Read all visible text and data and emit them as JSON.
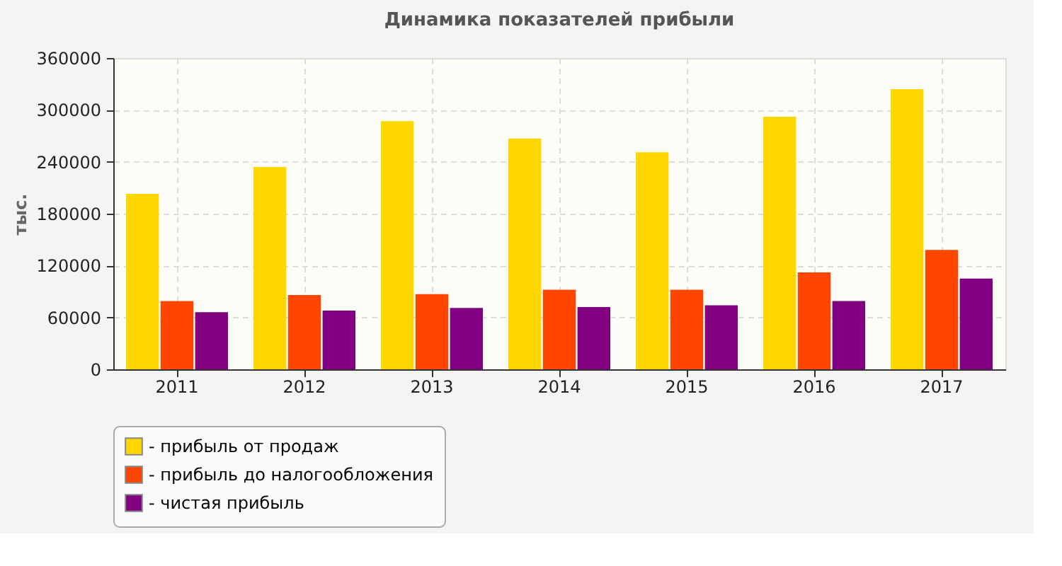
{
  "chart_data": {
    "type": "bar",
    "title": "Динамика показателей прибыли",
    "ylabel": "тыс.",
    "categories": [
      "2011",
      "2012",
      "2013",
      "2014",
      "2015",
      "2016",
      "2017"
    ],
    "series": [
      {
        "name": "- прибыль от продаж",
        "color": "#ffd700",
        "values": [
          203000,
          234000,
          287000,
          267000,
          251000,
          292000,
          324000
        ]
      },
      {
        "name": "- прибыль до налогообложения",
        "color": "#ff4500",
        "values": [
          79000,
          86000,
          87000,
          92000,
          92000,
          112000,
          138000
        ]
      },
      {
        "name": "- чистая прибыль",
        "color": "#800080",
        "values": [
          66000,
          68000,
          71000,
          72000,
          74000,
          79000,
          105000
        ]
      }
    ],
    "ylim": [
      0,
      360000
    ],
    "yticks": [
      0,
      60000,
      120000,
      180000,
      240000,
      300000,
      360000
    ],
    "grid": true,
    "legend": "bottom"
  }
}
